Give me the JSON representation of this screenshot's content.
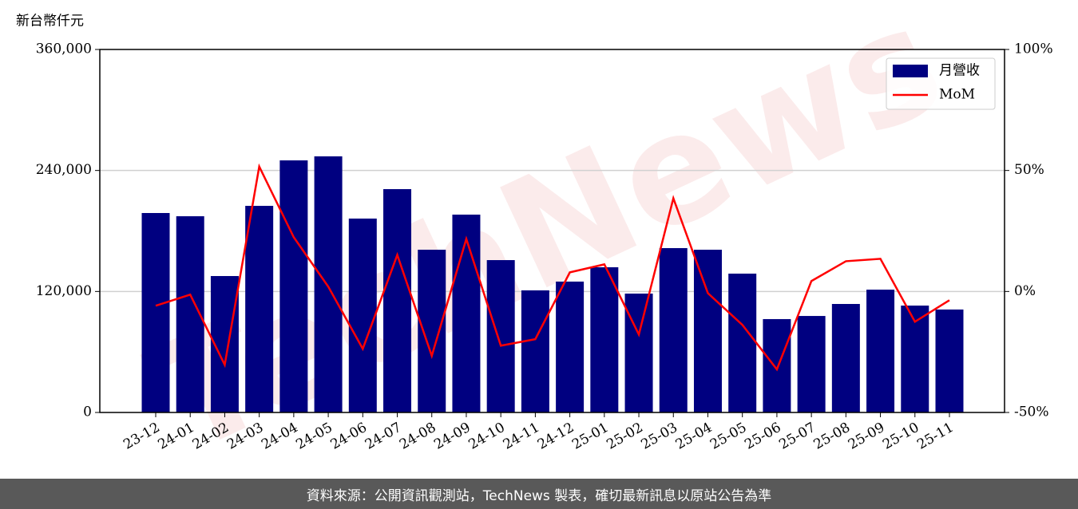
{
  "chart_data": {
    "type": "bar",
    "y_label": "新台幣仟元",
    "watermark": "TechNews",
    "categories": [
      "23-12",
      "24-01",
      "24-02",
      "24-03",
      "24-04",
      "24-05",
      "24-06",
      "24-07",
      "24-08",
      "24-09",
      "24-10",
      "24-11",
      "24-12",
      "25-01",
      "25-02",
      "25-03",
      "25-04",
      "25-05",
      "25-06",
      "25-07",
      "25-08",
      "25-09",
      "25-10",
      "25-11"
    ],
    "series": [
      {
        "name": "月營收",
        "type": "bar",
        "color": "#000080",
        "values": [
          197800,
          194600,
          135300,
          204900,
          250000,
          254000,
          192300,
          221500,
          161400,
          196200,
          151100,
          121100,
          129800,
          144000,
          117900,
          163000,
          161400,
          137700,
          92600,
          95700,
          107600,
          121800,
          106000,
          102100
        ]
      },
      {
        "name": "MoM",
        "type": "line",
        "axis": "y2",
        "color": "#ff0000",
        "values": [
          -5.9,
          -1.3,
          -30.3,
          51.6,
          22.4,
          2.0,
          -23.7,
          15.1,
          -26.6,
          21.7,
          -22.4,
          -19.7,
          7.9,
          11.2,
          -17.8,
          38.5,
          -0.7,
          -13.8,
          -32.2,
          4.3,
          12.5,
          13.5,
          -12.5,
          -3.6
        ]
      }
    ],
    "ylim": [
      0,
      360000
    ],
    "yticks": [
      0,
      {
        "value": 120000,
        "label": "120,000"
      },
      {
        "value": 240000,
        "label": "240,000"
      },
      {
        "value": 360000,
        "label": "360,000"
      }
    ],
    "y2lim": [
      -50,
      100
    ],
    "y2ticks": [
      {
        "value": -50,
        "label": "-50%"
      },
      {
        "value": 0,
        "label": "0%"
      },
      {
        "value": 50,
        "label": "50%"
      },
      {
        "value": 100,
        "label": "100%"
      }
    ],
    "grid": true,
    "legend": "upper right"
  },
  "footer": "資料來源：公開資訊觀測站，TechNews 製表，確切最新訊息以原站公告為準"
}
